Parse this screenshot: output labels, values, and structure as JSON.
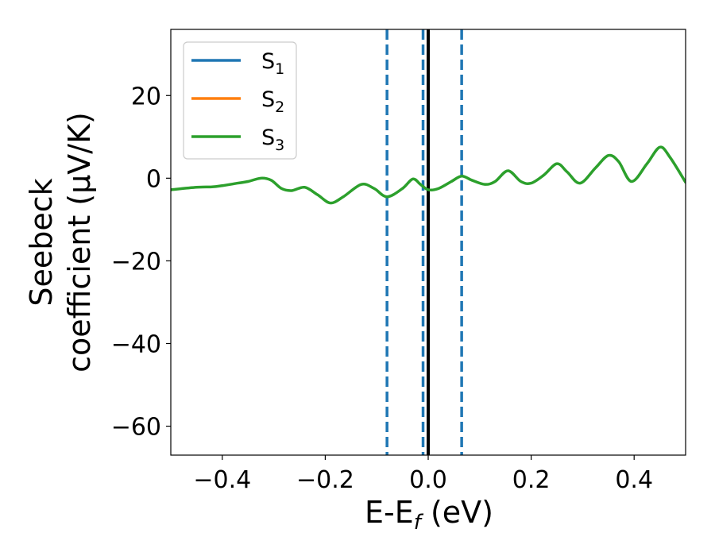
{
  "chart_data": {
    "type": "line",
    "xlabel": {
      "main": "E-E",
      "sub": "f",
      "suffix": " (eV)"
    },
    "ylabel": {
      "line1": "Seebeck",
      "line2": "coefficient  (μV/K)"
    },
    "xlim": [
      -0.5,
      0.5
    ],
    "ylim": [
      -67,
      36
    ],
    "xticks": [
      -0.4,
      -0.2,
      0.0,
      0.2,
      0.4
    ],
    "xtick_labels": [
      "−0.4",
      "−0.2",
      "0.0",
      "0.2",
      "0.4"
    ],
    "yticks": [
      20,
      0,
      -20,
      -40,
      -60
    ],
    "ytick_labels": [
      "20",
      "0",
      "−20",
      "−40",
      "−60"
    ],
    "grid": false,
    "legend_position": "top-left",
    "series": [
      {
        "name": "S",
        "sub": "1",
        "color": "#1f77b4"
      },
      {
        "name": "S",
        "sub": "2",
        "color": "#ff7f0e"
      },
      {
        "name": "S",
        "sub": "3",
        "color": "#2ca02c",
        "x": [
          -0.5,
          -0.45,
          -0.42,
          -0.4,
          -0.37,
          -0.35,
          -0.325,
          -0.305,
          -0.285,
          -0.265,
          -0.24,
          -0.215,
          -0.19,
          -0.165,
          -0.13,
          -0.105,
          -0.08,
          -0.05,
          -0.03,
          -0.015,
          0.0,
          0.02,
          0.045,
          0.065,
          0.085,
          0.11,
          0.13,
          0.155,
          0.18,
          0.2,
          0.225,
          0.25,
          0.27,
          0.295,
          0.325,
          0.35,
          0.37,
          0.395,
          0.425,
          0.45,
          0.47,
          0.5
        ],
        "values": [
          -2.8,
          -2.2,
          -2.1,
          -1.8,
          -1.2,
          -0.8,
          0.0,
          -0.5,
          -2.5,
          -3.0,
          -2.2,
          -4.0,
          -6.0,
          -4.5,
          -1.5,
          -2.5,
          -4.5,
          -2.5,
          -0.2,
          -1.5,
          -2.8,
          -2.5,
          -0.8,
          0.5,
          -0.5,
          -1.5,
          -0.8,
          1.8,
          -0.8,
          -1.2,
          0.8,
          3.5,
          1.5,
          -1.2,
          2.5,
          5.5,
          4.0,
          -0.8,
          3.5,
          7.5,
          5.0,
          -1.0
        ]
      }
    ],
    "vlines": [
      {
        "x": -0.08,
        "style": "dashed",
        "color": "#1f77b4"
      },
      {
        "x": -0.01,
        "style": "dashed",
        "color": "#1f77b4"
      },
      {
        "x": 0.0,
        "style": "solid",
        "color": "#000000"
      },
      {
        "x": 0.065,
        "style": "dashed",
        "color": "#1f77b4"
      }
    ]
  }
}
